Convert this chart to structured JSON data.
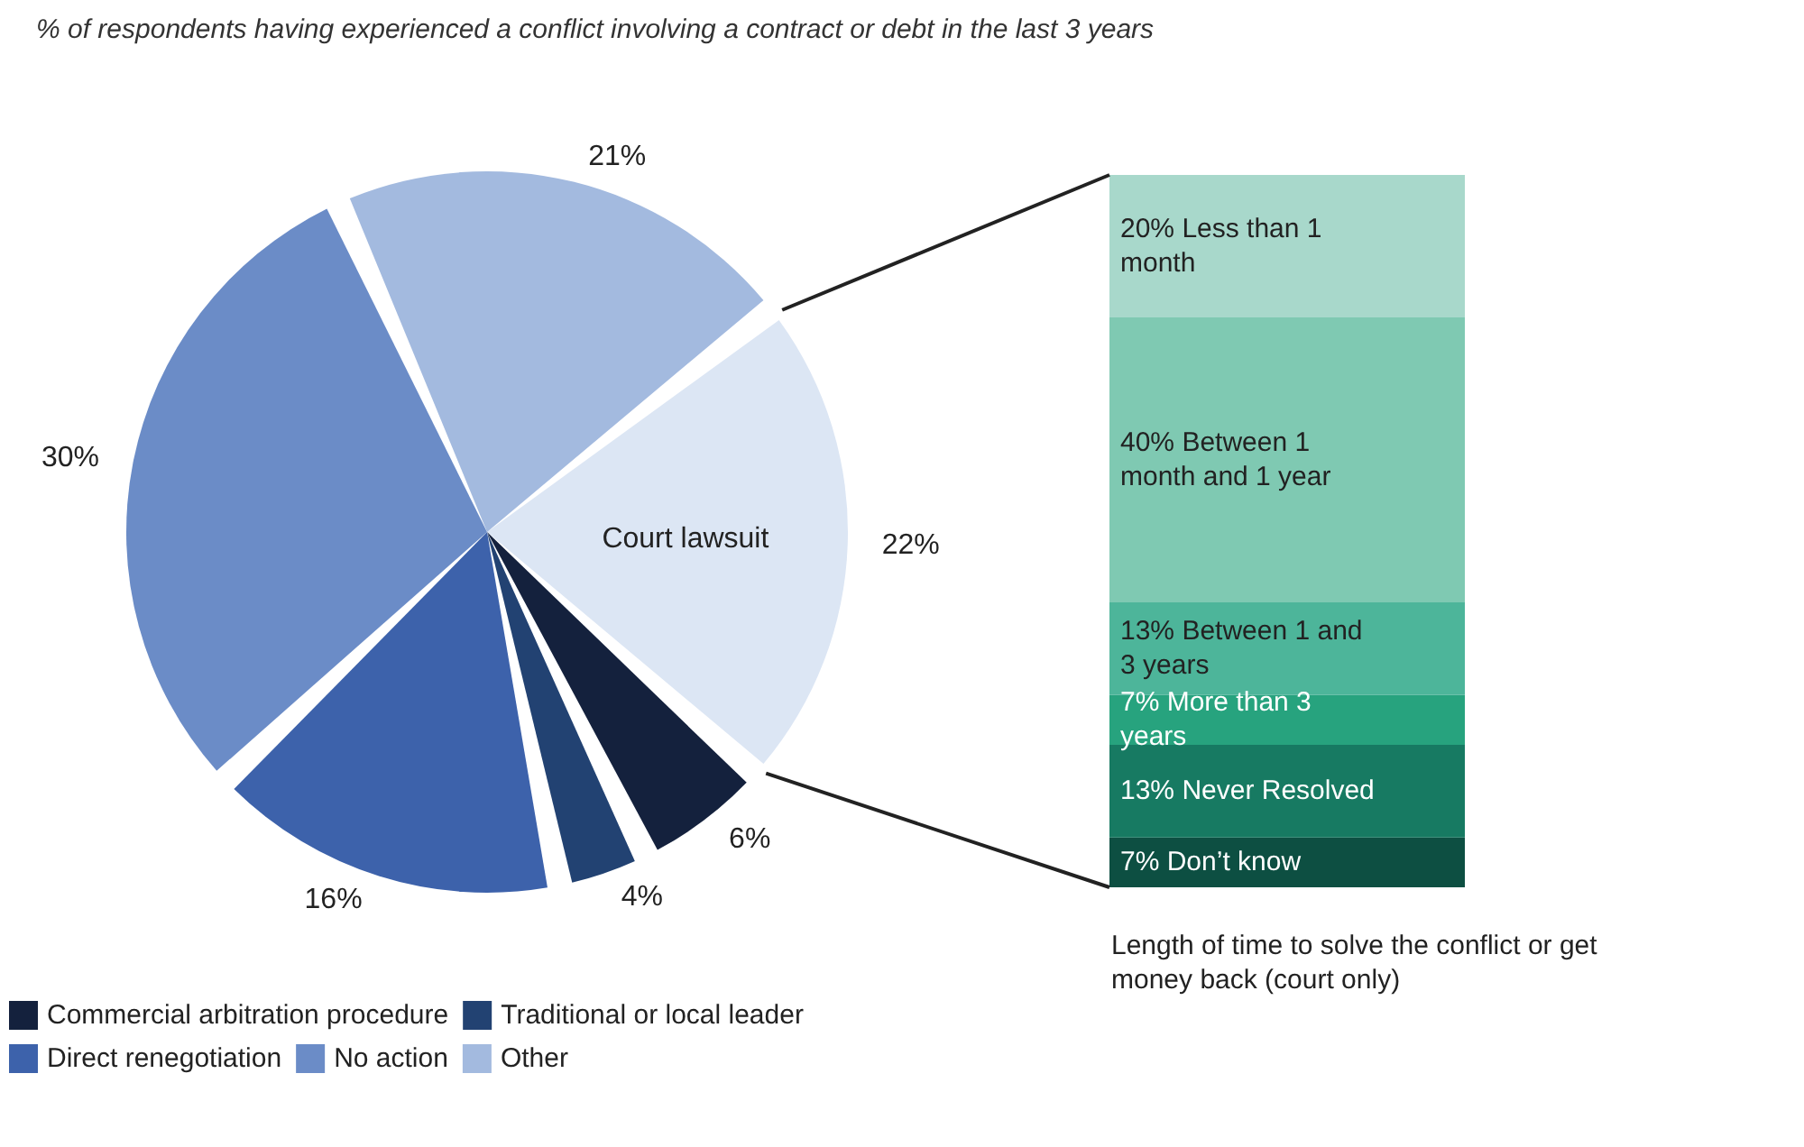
{
  "chart_data": [
    {
      "type": "pie",
      "title": "% of respondents having experienced a conflict involving a contract or debt in the last 3 years",
      "categories": [
        null,
        "Commercial arbitration procedure",
        "Traditional or local leader",
        "Direct renegotiation",
        "No action",
        "Other"
      ],
      "values": [
        22,
        6,
        4,
        16,
        30,
        21
      ],
      "value_labels": [
        "22%",
        "6%",
        "4%",
        "16%",
        "30%",
        "21%"
      ],
      "colors": [
        "#dce6f4",
        "#14213d",
        "#224272",
        "#3d62ab",
        "#6b8cc7",
        "#a3badf"
      ],
      "annotations": [
        "Court lawsuit"
      ],
      "legend": "bottom"
    },
    {
      "type": "bar",
      "stacked": true,
      "categories": [
        null
      ],
      "xlabel": "Length of time to solve the conflict or get money back (court only)",
      "series": [
        {
          "name": "Don’t know",
          "color": "#0d4f42",
          "values": [
            7
          ],
          "value_labels": [
            "7%"
          ]
        },
        {
          "name": "Never Resolved",
          "color": "#177a62",
          "values": [
            13
          ],
          "value_labels": [
            "13%"
          ]
        },
        {
          "name": "More than 3 years",
          "color": "#27a37e",
          "values": [
            7
          ],
          "value_labels": [
            "7%"
          ]
        },
        {
          "name": "Between 1 and 3 years",
          "color": "#4db59a",
          "values": [
            13
          ],
          "value_labels": [
            "13%"
          ]
        },
        {
          "name": "Between 1 month and 1 year",
          "color": "#7fc9b2",
          "values": [
            40
          ],
          "value_labels": [
            "40%"
          ]
        },
        {
          "name": "Less than 1 month",
          "color": "#a8d8cb",
          "values": [
            20
          ],
          "value_labels": [
            "20%"
          ]
        }
      ]
    }
  ]
}
